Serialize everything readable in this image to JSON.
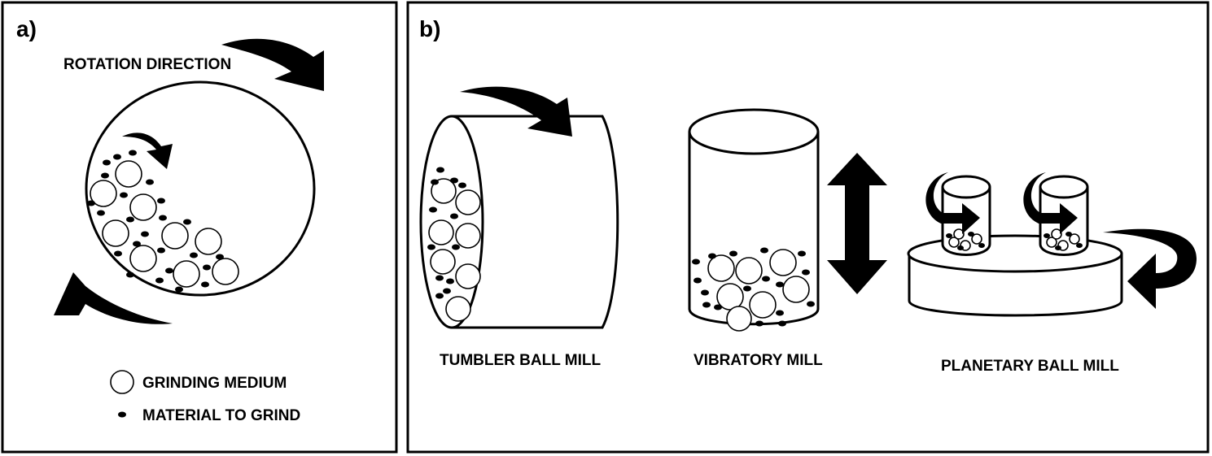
{
  "panel_a": {
    "label": "a)",
    "rotation_label": "ROTATION DIRECTION",
    "legend": {
      "grinding_medium": "GRINDING MEDIUM",
      "material": "MATERIAL TO GRIND"
    }
  },
  "panel_b": {
    "label": "b)",
    "mills": {
      "tumbler": "TUMBLER BALL MILL",
      "vibratory": "VIBRATORY MILL",
      "planetary": "PLANETARY BALL MILL"
    }
  },
  "colors": {
    "stroke": "#000000",
    "background": "#ffffff"
  }
}
